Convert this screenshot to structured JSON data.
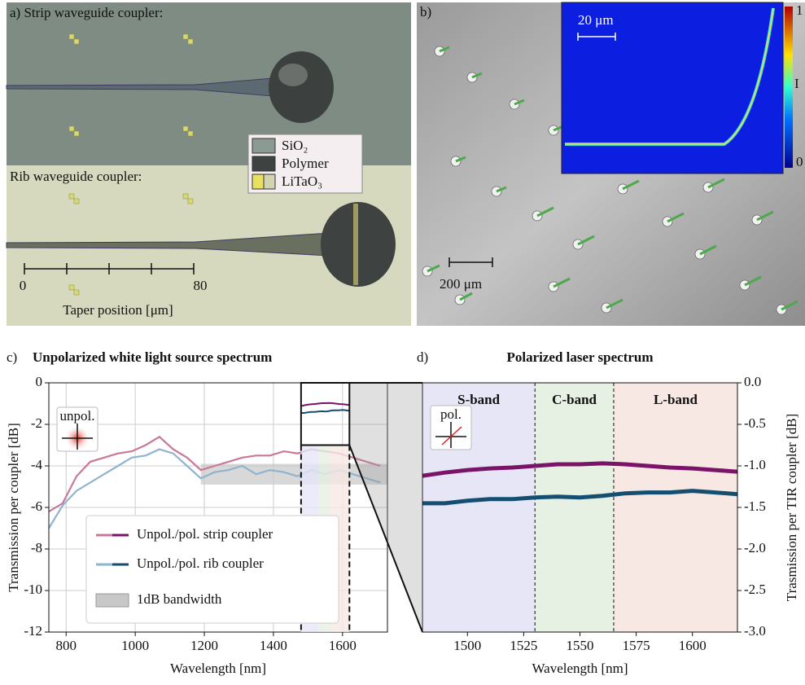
{
  "panel_a": {
    "label": "a) Strip waveguide coupler:",
    "rib_label": "Rib waveguide coupler:",
    "legend": [
      "SiO₂",
      "Polymer",
      "LiTaO₃"
    ],
    "scale_ticks": [
      "0",
      "80"
    ],
    "scale_label": "Taper position [μm]"
  },
  "panel_b": {
    "label": "b)",
    "inset_scale": "20 μm",
    "scale": "200 μm",
    "colorbar_ticks": [
      "1",
      "0"
    ],
    "colorbar_label": "I"
  },
  "chart_data": [
    {
      "type": "line",
      "panel_label": "c)",
      "title": "Unpolarized white light source spectrum",
      "xlabel": "Wavelength [nm]",
      "ylabel": "Transmission per coupler [dB]",
      "xlim": [
        750,
        1730
      ],
      "xticks": [
        800,
        1000,
        1200,
        1400,
        1600
      ],
      "ylim": [
        -12,
        0
      ],
      "yticks": [
        -12,
        -10,
        -8,
        -6,
        -4,
        -2,
        0
      ],
      "grid": true,
      "inset_label": "unpol.",
      "x": [
        750,
        790,
        830,
        870,
        910,
        950,
        990,
        1030,
        1070,
        1110,
        1150,
        1190,
        1230,
        1270,
        1310,
        1350,
        1390,
        1430,
        1470,
        1510,
        1550,
        1590,
        1630,
        1670,
        1710
      ],
      "series": [
        {
          "name": "Unpol./pol. strip coupler",
          "color": "#c9789a",
          "values": [
            -6.2,
            -5.8,
            -4.5,
            -3.8,
            -3.6,
            -3.4,
            -3.3,
            -3.0,
            -2.6,
            -3.2,
            -3.6,
            -4.2,
            -4.0,
            -3.8,
            -3.6,
            -3.5,
            -3.5,
            -3.3,
            -3.4,
            -3.2,
            -3.3,
            -3.4,
            -3.6,
            -3.8,
            -4.0
          ]
        },
        {
          "name": "Unpol./pol. rib coupler",
          "color": "#8fb4cf",
          "values": [
            -7.0,
            -5.9,
            -5.2,
            -4.8,
            -4.4,
            -4.0,
            -3.6,
            -3.5,
            -3.2,
            -3.4,
            -4.0,
            -4.6,
            -4.3,
            -4.2,
            -4.0,
            -4.4,
            -4.2,
            -4.3,
            -4.5,
            -4.2,
            -4.4,
            -4.2,
            -4.4,
            -4.6,
            -4.8
          ]
        }
      ],
      "band": {
        "name": "1dB bandwidth",
        "x": [
          1190,
          1730
        ],
        "y": [
          -4.9,
          -3.9
        ],
        "color": "#c8c8c8"
      }
    },
    {
      "type": "line",
      "panel_label": "d)",
      "title": "Polarized laser spectrum",
      "xlabel": "Wavelength [nm]",
      "y2label": "Trasmission per TIR coupler [dB]",
      "xlim": [
        1480,
        1620
      ],
      "xticks": [
        1500,
        1525,
        1550,
        1575,
        1600
      ],
      "y2lim": [
        -3,
        0
      ],
      "y2ticks": [
        {
          "value": -3,
          "label": "-3.0"
        },
        -2.5,
        {
          "value": -2,
          "label": "-2.0"
        },
        -1.5,
        {
          "value": -1,
          "label": "-1.0"
        },
        -0.5,
        {
          "value": 0,
          "label": "0.0"
        }
      ],
      "inset_label": "pol.",
      "bands": [
        {
          "name": "S-band",
          "start": 1480,
          "end": 1530,
          "color": "#e6e6f7"
        },
        {
          "name": "C-band",
          "start": 1530,
          "end": 1565,
          "color": "#e6f0e3"
        },
        {
          "name": "L-band",
          "start": 1565,
          "end": 1620,
          "color": "#f8e8e4"
        }
      ],
      "x": [
        1480,
        1490,
        1500,
        1510,
        1520,
        1530,
        1540,
        1550,
        1560,
        1570,
        1580,
        1590,
        1600,
        1610,
        1620
      ],
      "series": [
        {
          "color": "#7a1468",
          "axis": "y2",
          "values": [
            -1.12,
            -1.08,
            -1.05,
            -1.03,
            -1.02,
            -1.0,
            -0.98,
            -0.98,
            -0.97,
            -0.98,
            -1.0,
            -1.02,
            -1.03,
            -1.05,
            -1.07
          ]
        },
        {
          "color": "#144f72",
          "axis": "y2",
          "values": [
            -1.45,
            -1.45,
            -1.42,
            -1.4,
            -1.4,
            -1.38,
            -1.37,
            -1.38,
            -1.36,
            -1.33,
            -1.32,
            -1.32,
            -1.3,
            -1.32,
            -1.34
          ]
        }
      ]
    }
  ]
}
